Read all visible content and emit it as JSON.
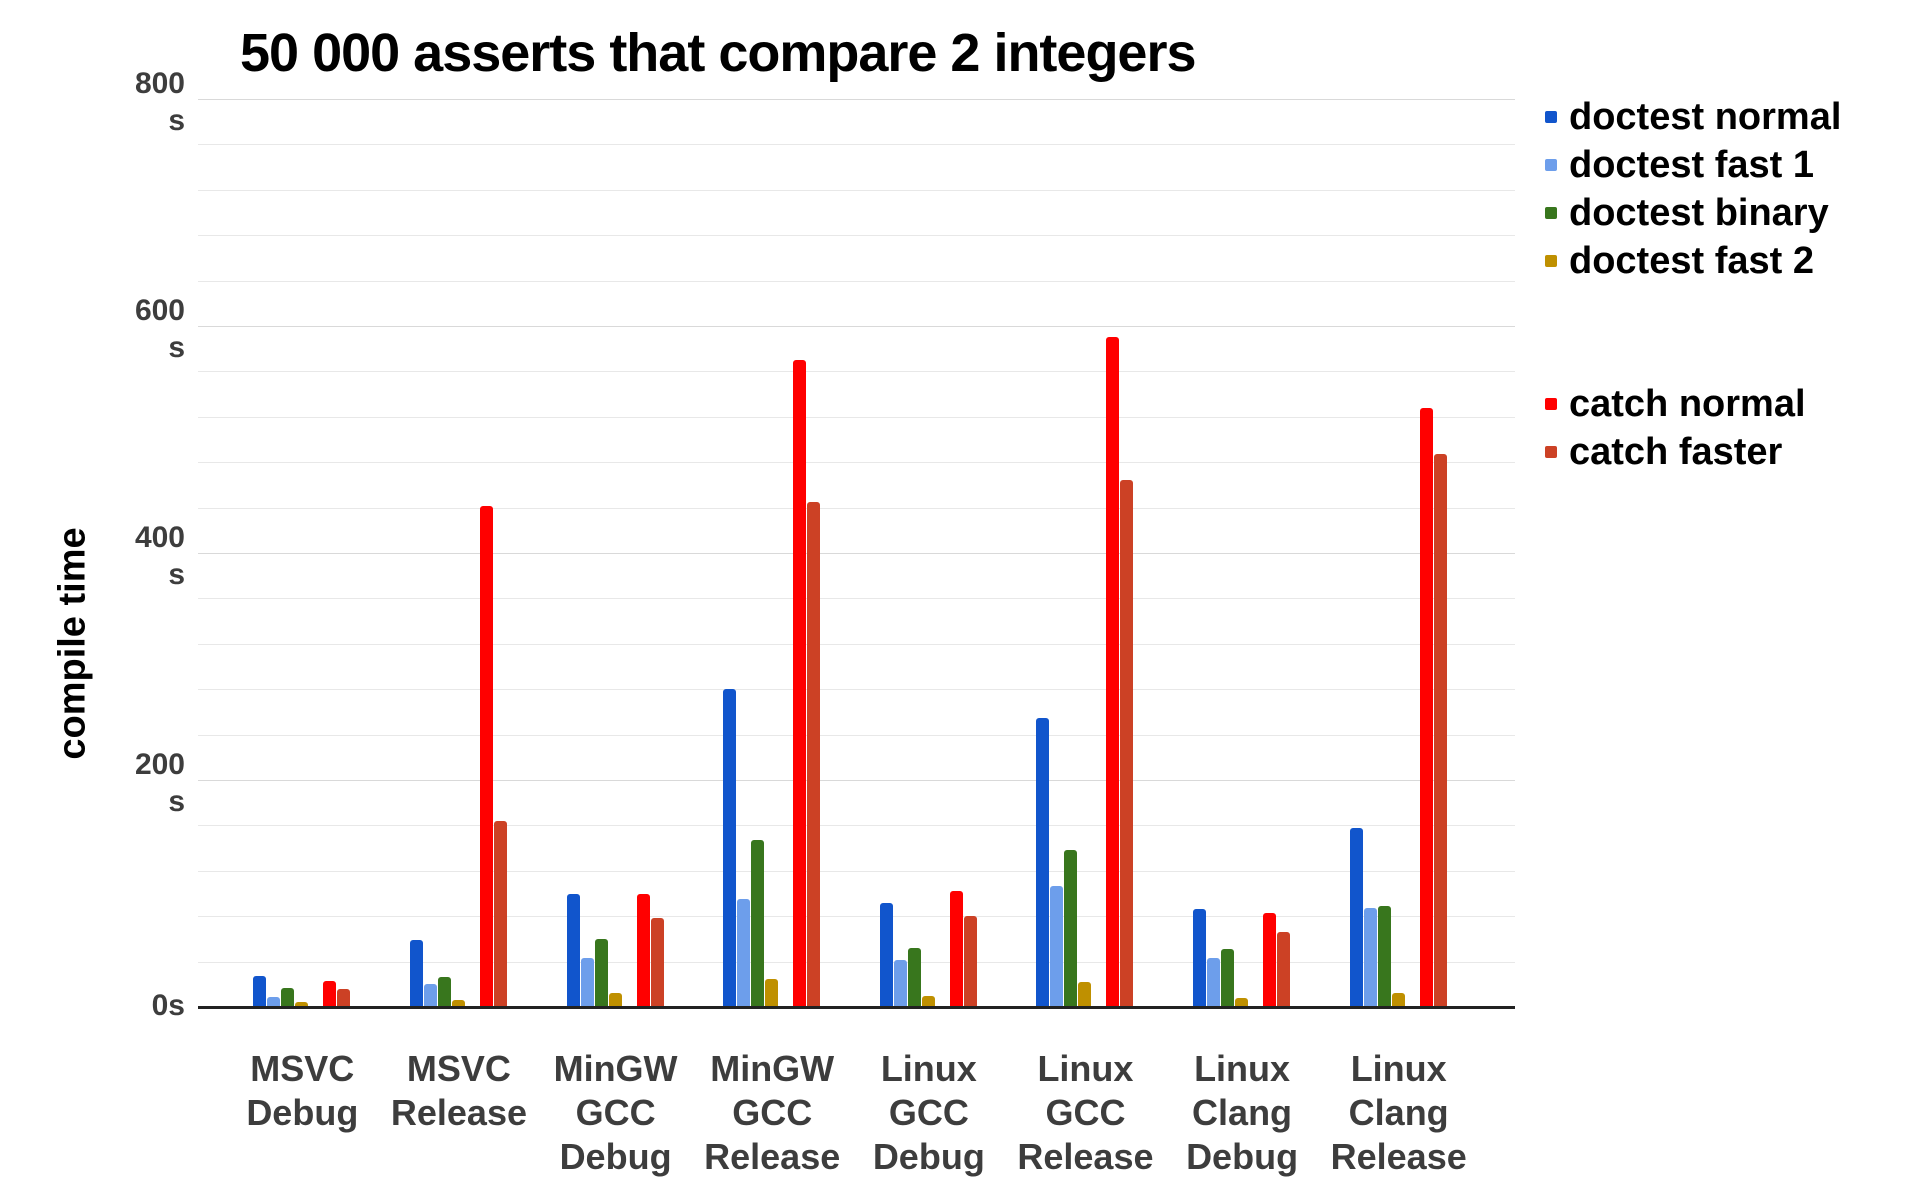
{
  "chart_data": {
    "type": "bar",
    "title": "50 000 asserts that compare 2 integers",
    "xlabel": "",
    "ylabel": "compile time",
    "y_unit": "s",
    "ylim": [
      0,
      800
    ],
    "y_major_tick_step": 200,
    "y_minor_tick_step": 40,
    "grid": true,
    "legend_position": "right",
    "y_tick_labels": [
      {
        "value": 800,
        "lines": [
          "800",
          "s"
        ]
      },
      {
        "value": 600,
        "lines": [
          "600",
          "s"
        ]
      },
      {
        "value": 400,
        "lines": [
          "400",
          "s"
        ]
      },
      {
        "value": 200,
        "lines": [
          "200",
          "s"
        ]
      },
      {
        "value": 0,
        "lines": [
          "0s"
        ]
      }
    ],
    "categories": [
      {
        "label": "MSVC Debug",
        "lines": [
          "MSVC",
          "Debug"
        ]
      },
      {
        "label": "MSVC Release",
        "lines": [
          "MSVC",
          "Release"
        ]
      },
      {
        "label": "MinGW GCC Debug",
        "lines": [
          "MinGW",
          "GCC",
          "Debug"
        ]
      },
      {
        "label": "MinGW GCC Release",
        "lines": [
          "MinGW",
          "GCC",
          "Release"
        ]
      },
      {
        "label": "Linux GCC Debug",
        "lines": [
          "Linux",
          "GCC",
          "Debug"
        ]
      },
      {
        "label": "Linux GCC Release",
        "lines": [
          "Linux",
          "GCC",
          "Release"
        ]
      },
      {
        "label": "Linux Clang Debug",
        "lines": [
          "Linux",
          "Clang",
          "Debug"
        ]
      },
      {
        "label": "Linux Clang Release",
        "lines": [
          "Linux",
          "Clang",
          "Release"
        ]
      }
    ],
    "series": [
      {
        "name": "doctest normal",
        "group": "doctest",
        "color": "#1155cc",
        "values": [
          27,
          59,
          100,
          280,
          92,
          255,
          86,
          158
        ]
      },
      {
        "name": "doctest fast 1",
        "group": "doctest",
        "color": "#6d9eeb",
        "values": [
          9,
          20,
          43,
          95,
          41,
          107,
          43,
          87
        ]
      },
      {
        "name": "doctest binary",
        "group": "doctest",
        "color": "#38761d",
        "values": [
          17,
          26,
          60,
          147,
          52,
          138,
          51,
          89
        ]
      },
      {
        "name": "doctest fast 2",
        "group": "doctest",
        "color": "#bf9000",
        "values": [
          4,
          6,
          12,
          25,
          10,
          22,
          8,
          12
        ]
      },
      {
        "name": "catch normal",
        "group": "catch",
        "color": "#ff0000",
        "values": [
          23,
          441,
          100,
          570,
          102,
          590,
          83,
          528
        ]
      },
      {
        "name": "catch faster",
        "group": "catch",
        "color": "#cc4125",
        "values": [
          16,
          164,
          78,
          445,
          80,
          464,
          66,
          487
        ]
      }
    ],
    "colors": {
      "background": "#ffffff",
      "gridline_minor": "#e8e8e8",
      "gridline_major": "#d9d9d9",
      "axis_line": "#222222",
      "title_text": "#000000",
      "tick_text": "#3d3d3d"
    }
  }
}
